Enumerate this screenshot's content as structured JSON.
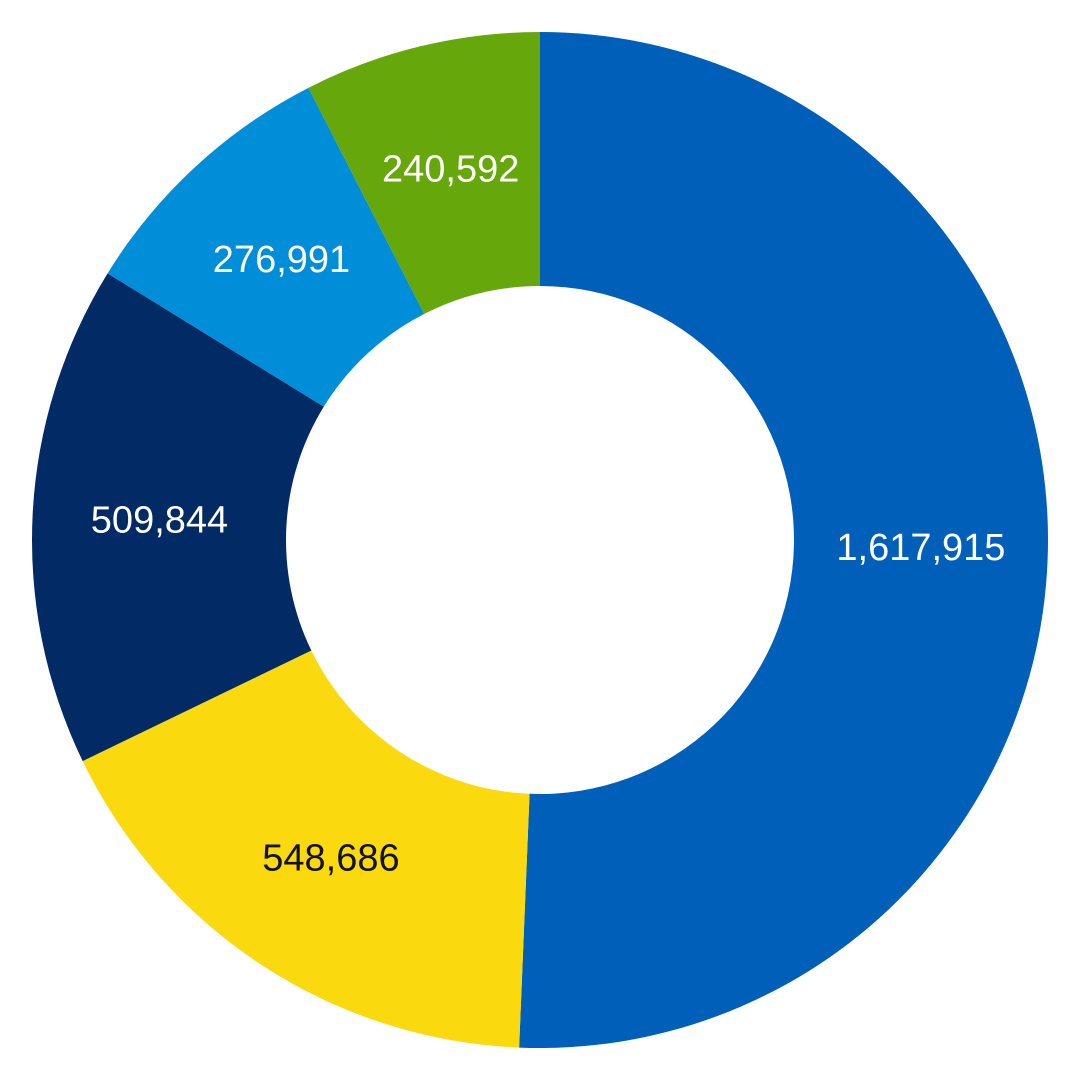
{
  "chart_data": {
    "type": "pie",
    "variant": "donut",
    "title": "",
    "legend": "none",
    "slices": [
      {
        "value": 1617915,
        "label": "1,617,915",
        "color": "#0060B9",
        "label_color": "#FFFFFF"
      },
      {
        "value": 548686,
        "label": "548,686",
        "color": "#FAD90F",
        "label_color": "#111111"
      },
      {
        "value": 509844,
        "label": "509,844",
        "color": "#022A64",
        "label_color": "#FFFFFF"
      },
      {
        "value": 276991,
        "label": "276,991",
        "color": "#008ED9",
        "label_color": "#FFFFFF"
      },
      {
        "value": 240592,
        "label": "240,592",
        "color": "#66A80C",
        "label_color": "#FFFFFF"
      }
    ]
  }
}
